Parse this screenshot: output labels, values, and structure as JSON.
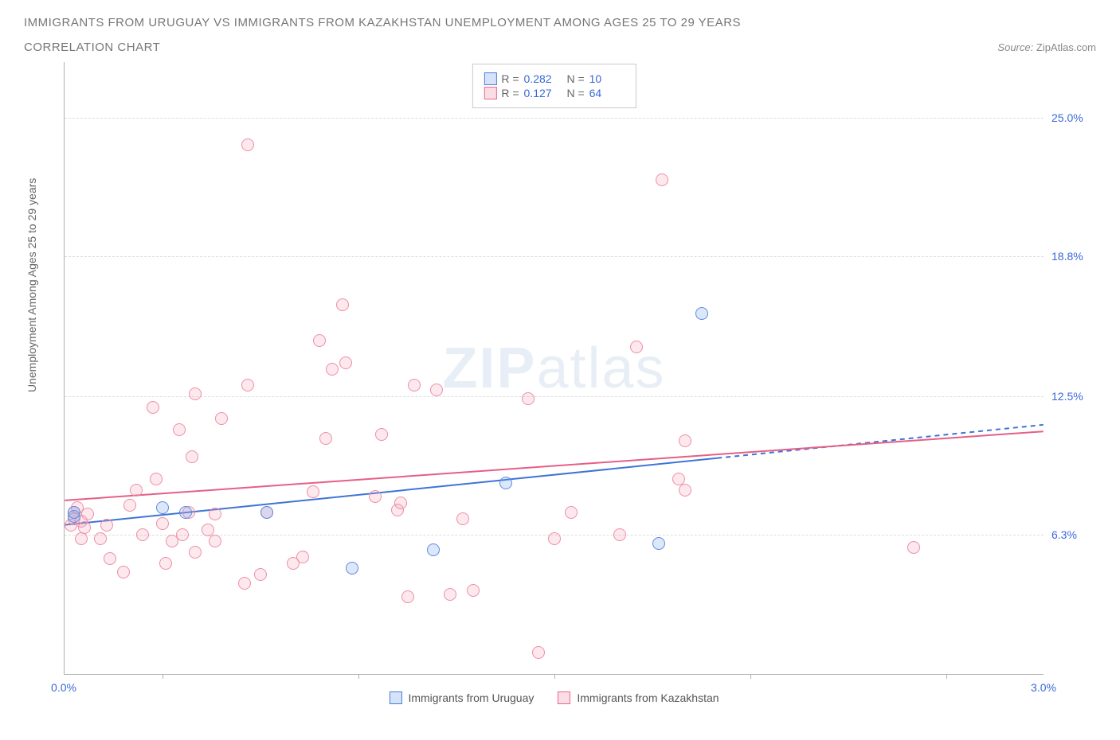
{
  "header": {
    "title_line1": "IMMIGRANTS FROM URUGUAY VS IMMIGRANTS FROM KAZAKHSTAN UNEMPLOYMENT AMONG AGES 25 TO 29 YEARS",
    "title_line2": "CORRELATION CHART",
    "source_label": "Source:",
    "source_value": "ZipAtlas.com"
  },
  "chart": {
    "type": "scatter",
    "ylabel": "Unemployment Among Ages 25 to 29 years",
    "xlim": [
      0,
      3.0
    ],
    "ylim": [
      0,
      27.5
    ],
    "yticks": [
      {
        "v": 6.3,
        "label": "6.3%",
        "color": "#3968d8"
      },
      {
        "v": 12.5,
        "label": "12.5%",
        "color": "#3968d8"
      },
      {
        "v": 18.8,
        "label": "18.8%",
        "color": "#3968d8"
      },
      {
        "v": 25.0,
        "label": "25.0%",
        "color": "#3968d8"
      }
    ],
    "xticks_label": [
      {
        "v": 0.0,
        "label": "0.0%",
        "color": "#3968d8"
      },
      {
        "v": 3.0,
        "label": "3.0%",
        "color": "#3968d8"
      }
    ],
    "xticks_minor": [
      0.3,
      0.9,
      1.5,
      2.1,
      2.7
    ],
    "background_color": "#ffffff",
    "grid_color": "#dddddd",
    "watermark": "ZIPatlas",
    "series": {
      "uruguay": {
        "label": "Immigrants from Uruguay",
        "color_fill": "rgba(120,160,235,0.25)",
        "color_stroke": "#5b8be0",
        "marker_radius": 8,
        "R": "0.282",
        "N": "10",
        "trend": {
          "x1": 0.0,
          "y1": 6.7,
          "x2": 2.0,
          "y2": 9.7,
          "dash_after_x": 2.0,
          "x3": 3.0,
          "y3": 11.2,
          "stroke": "#3e74d6",
          "width": 2
        },
        "points": [
          {
            "x": 0.03,
            "y": 7.1
          },
          {
            "x": 0.03,
            "y": 7.3
          },
          {
            "x": 0.3,
            "y": 7.5
          },
          {
            "x": 0.37,
            "y": 7.3
          },
          {
            "x": 0.62,
            "y": 7.3
          },
          {
            "x": 0.88,
            "y": 4.8
          },
          {
            "x": 1.13,
            "y": 5.6
          },
          {
            "x": 1.35,
            "y": 8.6
          },
          {
            "x": 1.82,
            "y": 5.9
          },
          {
            "x": 1.95,
            "y": 16.2
          }
        ]
      },
      "kazakhstan": {
        "label": "Immigrants from Kazakhstan",
        "color_fill": "rgba(245,150,175,0.22)",
        "color_stroke": "#ec8fa8",
        "marker_radius": 8,
        "R": "0.127",
        "N": "64",
        "trend": {
          "x1": 0.0,
          "y1": 7.8,
          "x2": 3.0,
          "y2": 10.9,
          "stroke": "#e55f86",
          "width": 2
        },
        "points": [
          {
            "x": 0.02,
            "y": 6.7
          },
          {
            "x": 0.03,
            "y": 7.0
          },
          {
            "x": 0.03,
            "y": 7.3
          },
          {
            "x": 0.04,
            "y": 7.5
          },
          {
            "x": 0.05,
            "y": 6.9
          },
          {
            "x": 0.06,
            "y": 6.6
          },
          {
            "x": 0.07,
            "y": 7.2
          },
          {
            "x": 0.05,
            "y": 6.1
          },
          {
            "x": 0.13,
            "y": 6.7
          },
          {
            "x": 0.11,
            "y": 6.1
          },
          {
            "x": 0.14,
            "y": 5.2
          },
          {
            "x": 0.2,
            "y": 7.6
          },
          {
            "x": 0.18,
            "y": 4.6
          },
          {
            "x": 0.22,
            "y": 8.3
          },
          {
            "x": 0.24,
            "y": 6.3
          },
          {
            "x": 0.27,
            "y": 12.0
          },
          {
            "x": 0.28,
            "y": 8.8
          },
          {
            "x": 0.3,
            "y": 6.8
          },
          {
            "x": 0.31,
            "y": 5.0
          },
          {
            "x": 0.35,
            "y": 11.0
          },
          {
            "x": 0.36,
            "y": 6.3
          },
          {
            "x": 0.38,
            "y": 7.3
          },
          {
            "x": 0.39,
            "y": 9.8
          },
          {
            "x": 0.4,
            "y": 5.5
          },
          {
            "x": 0.4,
            "y": 12.6
          },
          {
            "x": 0.44,
            "y": 6.5
          },
          {
            "x": 0.46,
            "y": 7.2
          },
          {
            "x": 0.46,
            "y": 6.0
          },
          {
            "x": 0.48,
            "y": 11.5
          },
          {
            "x": 0.55,
            "y": 4.1
          },
          {
            "x": 0.56,
            "y": 13.0
          },
          {
            "x": 0.56,
            "y": 23.8
          },
          {
            "x": 0.6,
            "y": 4.5
          },
          {
            "x": 0.62,
            "y": 7.3
          },
          {
            "x": 0.7,
            "y": 5.0
          },
          {
            "x": 0.73,
            "y": 5.3
          },
          {
            "x": 0.76,
            "y": 8.2
          },
          {
            "x": 0.78,
            "y": 15.0
          },
          {
            "x": 0.8,
            "y": 10.6
          },
          {
            "x": 0.82,
            "y": 13.7
          },
          {
            "x": 0.85,
            "y": 16.6
          },
          {
            "x": 0.86,
            "y": 14.0
          },
          {
            "x": 0.95,
            "y": 8.0
          },
          {
            "x": 0.97,
            "y": 10.8
          },
          {
            "x": 1.02,
            "y": 7.4
          },
          {
            "x": 1.03,
            "y": 7.7
          },
          {
            "x": 1.05,
            "y": 3.5
          },
          {
            "x": 1.07,
            "y": 13.0
          },
          {
            "x": 1.14,
            "y": 12.8
          },
          {
            "x": 1.18,
            "y": 3.6
          },
          {
            "x": 1.22,
            "y": 7.0
          },
          {
            "x": 1.25,
            "y": 3.8
          },
          {
            "x": 1.42,
            "y": 12.4
          },
          {
            "x": 1.45,
            "y": 1.0
          },
          {
            "x": 1.5,
            "y": 6.1
          },
          {
            "x": 1.55,
            "y": 7.3
          },
          {
            "x": 1.7,
            "y": 6.3
          },
          {
            "x": 1.75,
            "y": 14.7
          },
          {
            "x": 1.83,
            "y": 22.2
          },
          {
            "x": 1.88,
            "y": 8.8
          },
          {
            "x": 1.9,
            "y": 10.5
          },
          {
            "x": 1.9,
            "y": 8.3
          },
          {
            "x": 2.6,
            "y": 5.7
          },
          {
            "x": 0.33,
            "y": 6.0
          }
        ]
      }
    }
  }
}
